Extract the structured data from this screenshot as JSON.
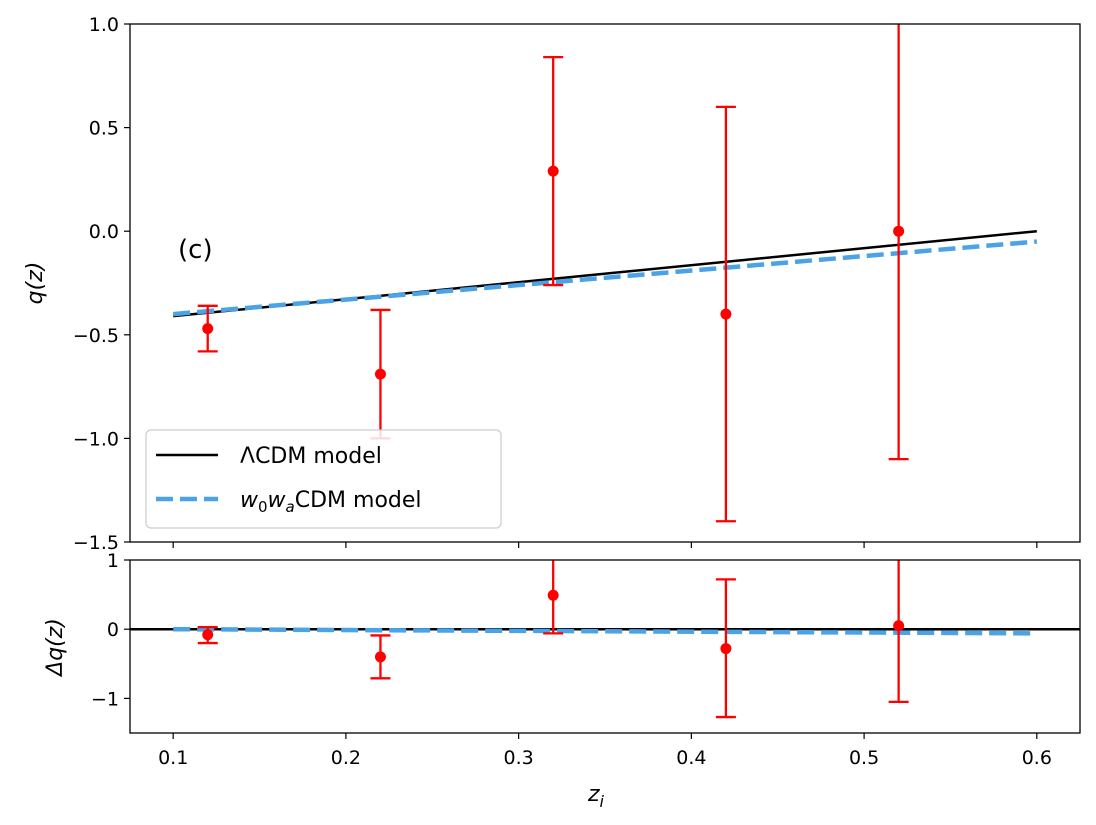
{
  "chart_data": [
    {
      "id": "top",
      "type": "line",
      "annotation": "(c)",
      "xlabel": "",
      "ylabel": "q(z)",
      "xlim": [
        0.075,
        0.625
      ],
      "ylim": [
        -1.5,
        1.0
      ],
      "x_ticks": [
        0.1,
        0.2,
        0.3,
        0.4,
        0.5,
        0.6
      ],
      "y_ticks": [
        1.0,
        0.5,
        0.0,
        -0.5,
        -1.0,
        -1.5
      ],
      "y_tick_labels": [
        "1.0",
        "0.5",
        "0.0",
        "−0.5",
        "−1.0",
        "−1.5"
      ],
      "show_x_tick_labels": false,
      "series": [
        {
          "name": "ΛCDM model",
          "style": "solid",
          "color": "#000000",
          "x": [
            0.1,
            0.6
          ],
          "y": [
            -0.41,
            0.0
          ]
        },
        {
          "name": "w0waCDM model",
          "style": "dashed",
          "color": "#4aa3e6",
          "x": [
            0.1,
            0.6
          ],
          "y": [
            -0.4,
            -0.05
          ]
        }
      ],
      "points": {
        "color": "#ff0000",
        "x": [
          0.12,
          0.22,
          0.32,
          0.42,
          0.52
        ],
        "y": [
          -0.47,
          -0.69,
          0.29,
          -0.4,
          0.0
        ],
        "err_low": [
          -0.58,
          -1.0,
          -0.26,
          -1.4,
          -1.1
        ],
        "err_high": [
          -0.36,
          -0.38,
          0.84,
          0.6,
          1.1
        ]
      },
      "legend": {
        "location": "lower-left",
        "entries": [
          {
            "prefix": "Λ",
            "suffix": "CDM model"
          },
          {
            "w": "w",
            "sub0": "0",
            "w2": "w",
            "suba": "a",
            "suffix": "CDM model"
          }
        ]
      }
    },
    {
      "id": "bottom",
      "type": "line",
      "xlabel": "z",
      "xlabel_sub": "i",
      "ylabel": "Δq(z)",
      "xlim": [
        0.075,
        0.625
      ],
      "ylim": [
        -1.5,
        1.0
      ],
      "x_ticks": [
        0.1,
        0.2,
        0.3,
        0.4,
        0.5,
        0.6
      ],
      "x_tick_labels": [
        "0.1",
        "0.2",
        "0.3",
        "0.4",
        "0.5",
        "0.6"
      ],
      "y_ticks": [
        1,
        0,
        -1
      ],
      "y_tick_labels": [
        "1",
        "0",
        "−1"
      ],
      "series": [
        {
          "name": "ΛCDM model",
          "style": "solid",
          "color": "#000000",
          "x": [
            0.075,
            0.625
          ],
          "y": [
            0.0,
            0.0
          ]
        },
        {
          "name": "w0waCDM model",
          "style": "dashed",
          "color": "#4aa3e6",
          "x": [
            0.1,
            0.6
          ],
          "y": [
            0.0,
            -0.06
          ]
        }
      ],
      "points": {
        "color": "#ff0000",
        "x": [
          0.12,
          0.22,
          0.32,
          0.42,
          0.52
        ],
        "y": [
          -0.08,
          -0.4,
          0.49,
          -0.28,
          0.05
        ],
        "err_low": [
          -0.2,
          -0.71,
          -0.06,
          -1.27,
          -1.05
        ],
        "err_high": [
          0.03,
          -0.09,
          1.05,
          0.72,
          1.1
        ]
      }
    }
  ]
}
